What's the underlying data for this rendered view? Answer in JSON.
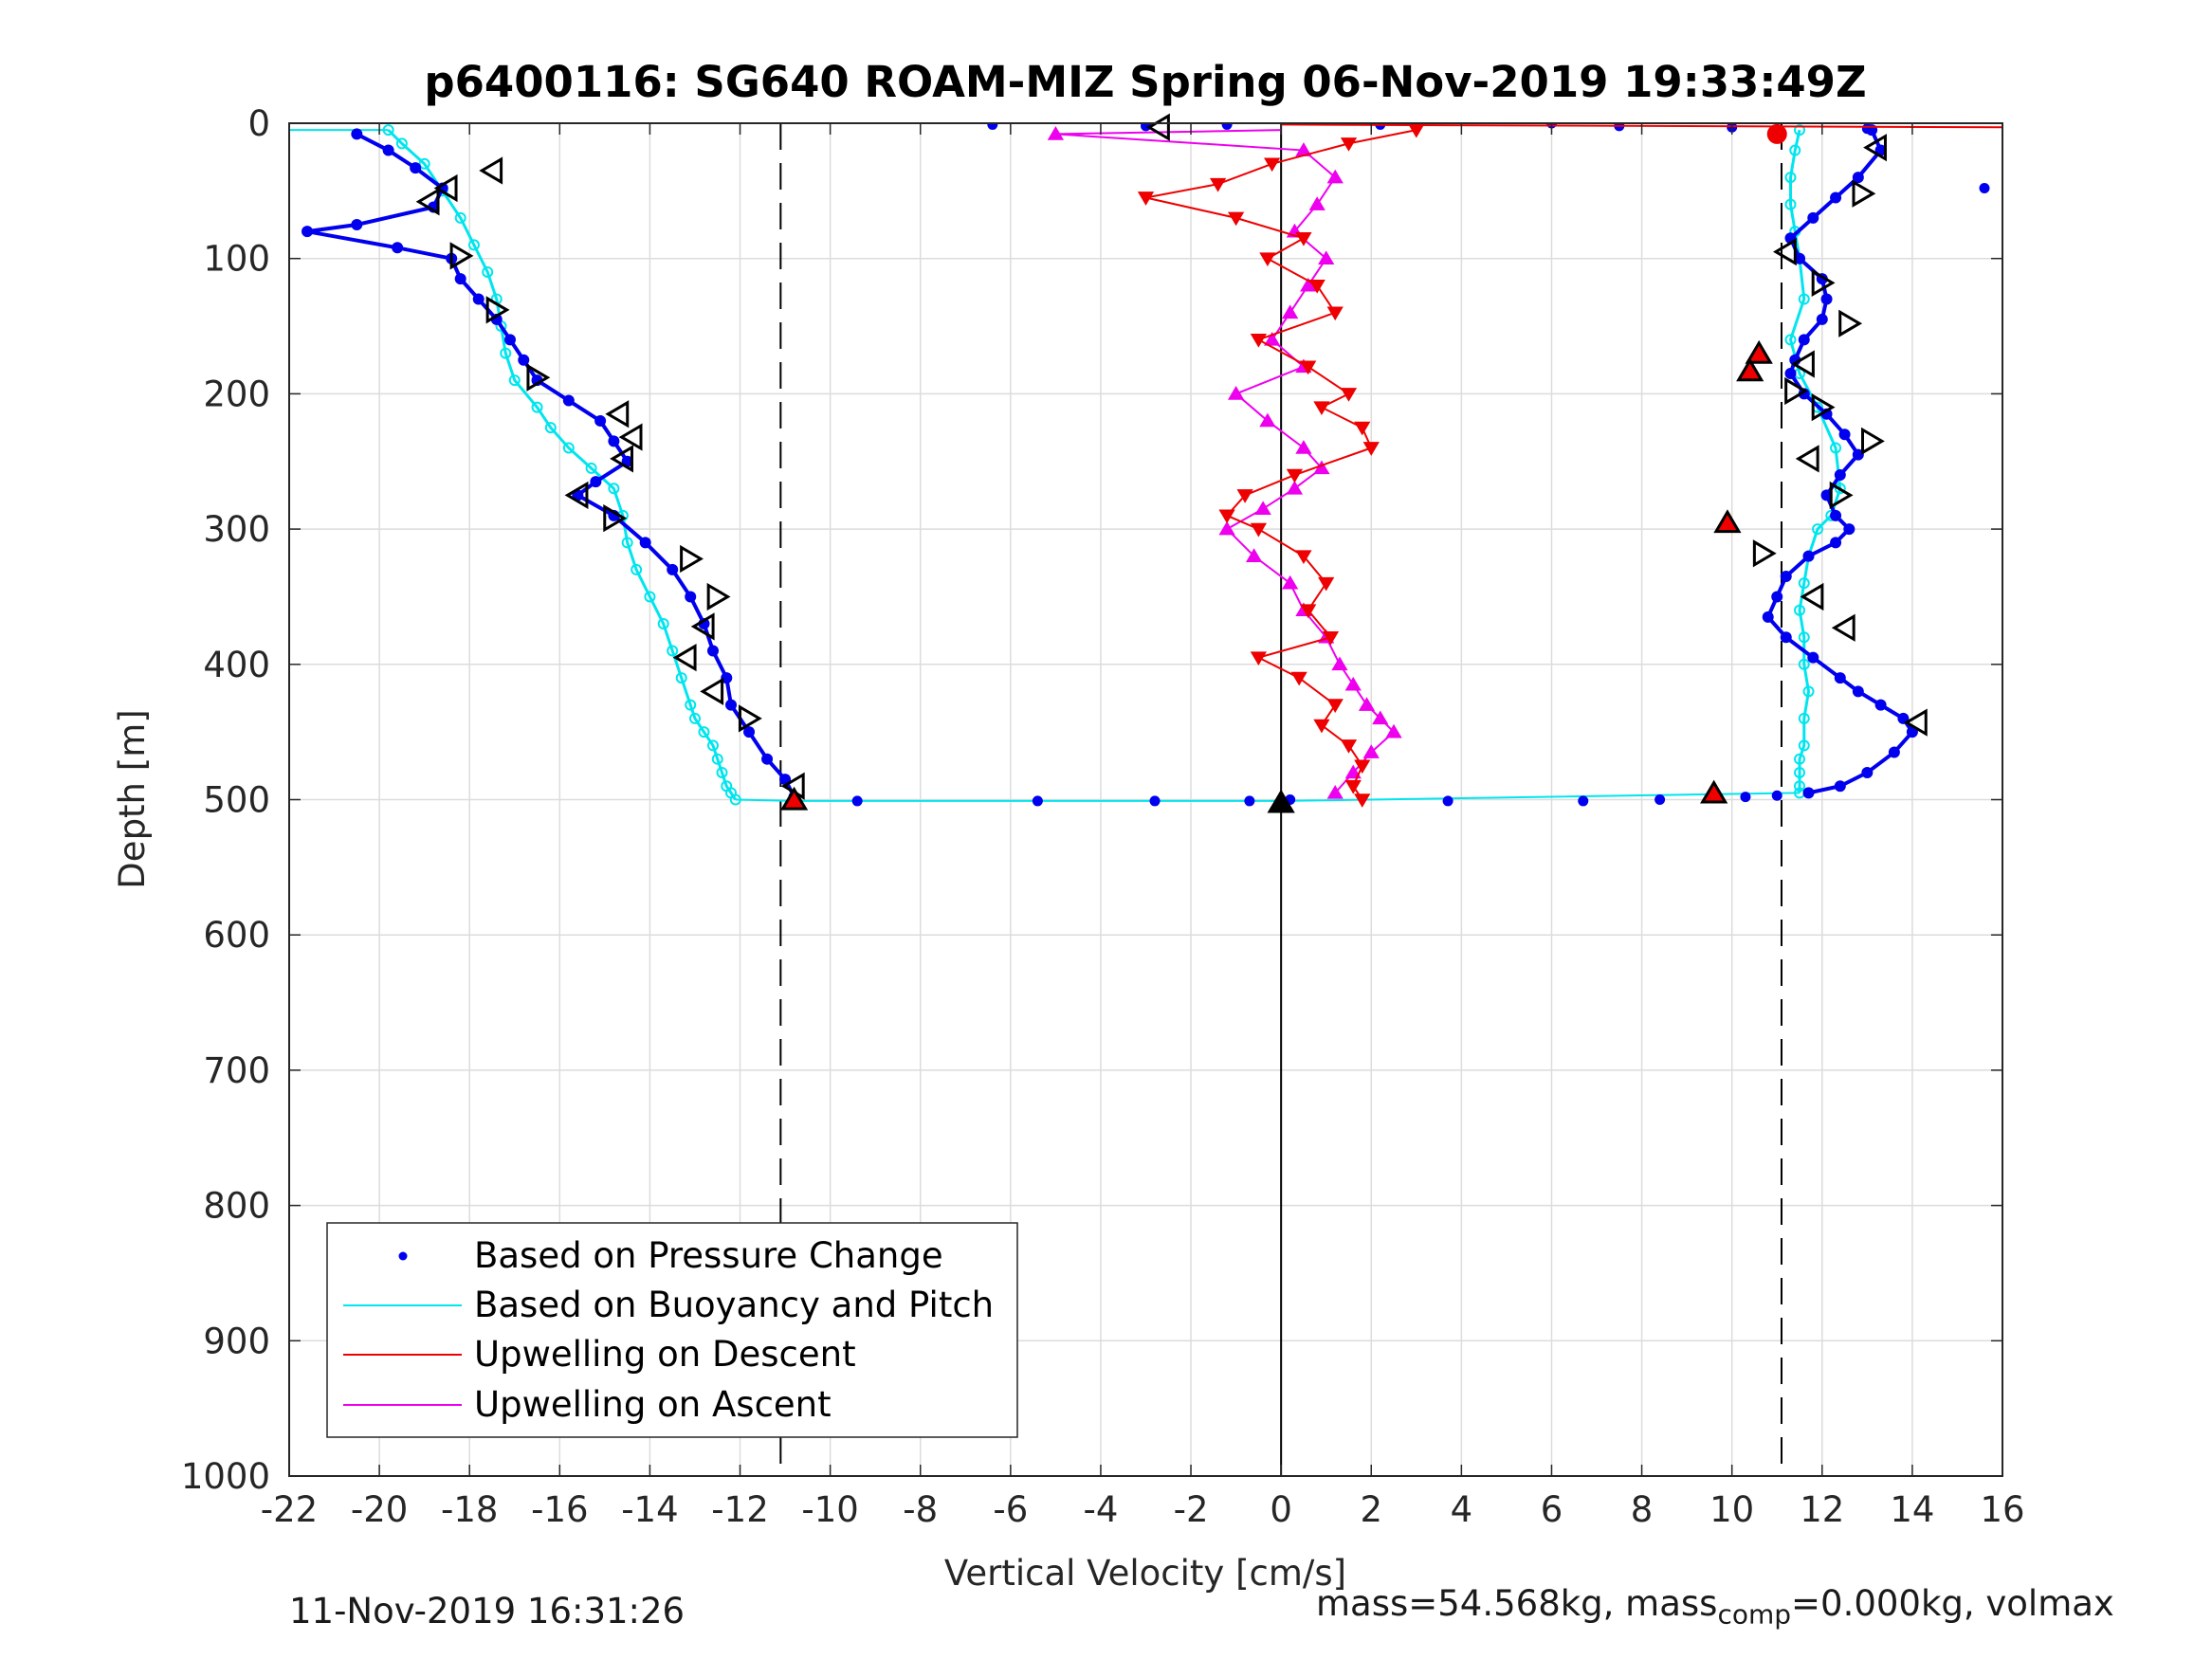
{
  "chart_data": {
    "type": "scatter",
    "title": "p6400116: SG640 ROAM-MIZ Spring 06-Nov-2019 19:33:49Z",
    "xlabel": "Vertical Velocity [cm/s]",
    "ylabel": "Depth [m]",
    "xlim": [
      -22,
      16
    ],
    "ylim": [
      0,
      1000
    ],
    "y_reversed": true,
    "grid": true,
    "x_ticks": [
      "-22",
      "-20",
      "-18",
      "-16",
      "-14",
      "-12",
      "-10",
      "-8",
      "-6",
      "-4",
      "-2",
      "0",
      "2",
      "4",
      "6",
      "8",
      "10",
      "12",
      "14",
      "16"
    ],
    "y_ticks": [
      "0",
      "100",
      "200",
      "300",
      "400",
      "500",
      "600",
      "700",
      "800",
      "900",
      "1000"
    ],
    "legend_position": "bottom-left",
    "reference_lines": [
      {
        "x": -11.1,
        "style": "dashed"
      },
      {
        "x": 11.1,
        "style": "dashed"
      },
      {
        "x": 0,
        "style": "solid"
      }
    ],
    "series": [
      {
        "name": "Based on Pressure Change",
        "color": "#0000ee",
        "marker": "dot",
        "descent": {
          "x": [
            -20.5,
            -19.8,
            -19.2,
            -18.6,
            -18.8,
            -20.5,
            -21.6,
            -19.6,
            -18.4,
            -18.2,
            -17.8,
            -17.4,
            -17.1,
            -16.8,
            -16.5,
            -15.8,
            -15.1,
            -14.8,
            -14.5,
            -15.2,
            -15.6,
            -14.8,
            -14.1,
            -13.5,
            -13.1,
            -12.8,
            -12.6,
            -12.3,
            -12.2,
            -11.8,
            -11.4,
            -11.0,
            -10.8
          ],
          "y": [
            8,
            20,
            33,
            48,
            62,
            75,
            80,
            92,
            100,
            115,
            130,
            145,
            160,
            175,
            190,
            205,
            220,
            235,
            250,
            265,
            275,
            290,
            310,
            330,
            350,
            370,
            390,
            410,
            430,
            450,
            470,
            485,
            498
          ]
        },
        "ascent": {
          "x": [
            13.1,
            13.3,
            12.8,
            12.3,
            11.8,
            11.3,
            11.5,
            12.0,
            12.1,
            12.0,
            11.6,
            11.4,
            11.3,
            11.6,
            12.1,
            12.5,
            12.8,
            12.4,
            12.1,
            12.3,
            12.6,
            12.3,
            11.7,
            11.2,
            11.0,
            10.8,
            11.2,
            11.8,
            12.4,
            12.8,
            13.3,
            13.8,
            14.0,
            13.6,
            13.0,
            12.4,
            11.7
          ],
          "y": [
            5,
            20,
            40,
            55,
            70,
            85,
            100,
            115,
            130,
            145,
            160,
            175,
            185,
            200,
            215,
            230,
            245,
            260,
            275,
            290,
            300,
            310,
            320,
            335,
            350,
            365,
            380,
            395,
            410,
            420,
            430,
            440,
            450,
            465,
            480,
            490,
            495
          ]
        }
      },
      {
        "name": "Based on Buoyancy and Pitch",
        "color": "#00e5ee",
        "marker": "line",
        "descent": {
          "x": [
            -19.8,
            -19.5,
            -19.0,
            -18.6,
            -18.2,
            -17.9,
            -17.6,
            -17.4,
            -17.3,
            -17.2,
            -17.0,
            -16.5,
            -16.2,
            -15.8,
            -15.3,
            -14.8,
            -14.6,
            -14.5,
            -14.3,
            -14.0,
            -13.7,
            -13.5,
            -13.3,
            -13.1,
            -13.0,
            -12.8,
            -12.6,
            -12.5,
            -12.4,
            -12.3,
            -12.2,
            -12.1
          ],
          "y": [
            5,
            15,
            30,
            50,
            70,
            90,
            110,
            130,
            150,
            170,
            190,
            210,
            225,
            240,
            255,
            270,
            290,
            310,
            330,
            350,
            370,
            390,
            410,
            430,
            440,
            450,
            460,
            470,
            480,
            490,
            495,
            500
          ]
        },
        "ascent": {
          "x": [
            11.5,
            11.4,
            11.3,
            11.3,
            11.4,
            11.5,
            11.6,
            11.3,
            11.5,
            11.9,
            12.3,
            12.4,
            12.2,
            11.9,
            11.7,
            11.6,
            11.5,
            11.6,
            11.6,
            11.7,
            11.6,
            11.6,
            11.5,
            11.5,
            11.5,
            11.5
          ],
          "y": [
            5,
            20,
            40,
            60,
            80,
            100,
            130,
            160,
            185,
            210,
            240,
            270,
            290,
            300,
            320,
            340,
            360,
            380,
            400,
            420,
            440,
            460,
            470,
            480,
            490,
            495
          ]
        }
      },
      {
        "name": "Upwelling on Descent",
        "color": "#ee0000",
        "marker": "triangle-down",
        "x": [
          3.0,
          1.5,
          -0.2,
          -1.4,
          -3.0,
          -1.0,
          0.5,
          -0.3,
          0.8,
          1.2,
          -0.5,
          0.6,
          1.5,
          0.9,
          1.8,
          2.0,
          0.3,
          -0.8,
          -1.2,
          -0.5,
          0.5,
          1.0,
          0.6,
          1.1,
          -0.5,
          0.4,
          1.2,
          0.9,
          1.5,
          1.8,
          1.6,
          1.8
        ],
        "y": [
          5,
          15,
          30,
          45,
          55,
          70,
          85,
          100,
          120,
          140,
          160,
          180,
          200,
          210,
          225,
          240,
          260,
          275,
          290,
          300,
          320,
          340,
          360,
          380,
          395,
          410,
          430,
          445,
          460,
          475,
          490,
          500
        ]
      },
      {
        "name": "Upwelling on Ascent",
        "color": "#ee00ee",
        "marker": "triangle-up",
        "x": [
          -5.0,
          0.5,
          1.2,
          0.8,
          0.3,
          1.0,
          0.6,
          0.2,
          -0.2,
          0.5,
          -1.0,
          -0.3,
          0.5,
          0.9,
          0.3,
          -0.4,
          -1.2,
          -0.6,
          0.2,
          0.5,
          1.0,
          1.3,
          1.6,
          1.9,
          2.2,
          2.5,
          2.0,
          1.6,
          1.2
        ],
        "y": [
          8,
          20,
          40,
          60,
          80,
          100,
          120,
          140,
          160,
          180,
          200,
          220,
          240,
          255,
          270,
          285,
          300,
          320,
          340,
          360,
          380,
          400,
          415,
          430,
          440,
          450,
          465,
          480,
          495
        ]
      }
    ],
    "annotations": [
      {
        "type": "triangle-left-open",
        "x": -17.5,
        "y": 35
      },
      {
        "type": "triangle-left-open",
        "x": -18.5,
        "y": 48
      },
      {
        "type": "triangle-left-open",
        "x": -18.9,
        "y": 58
      },
      {
        "type": "triangle-right-open",
        "x": -18.2,
        "y": 98
      },
      {
        "type": "triangle-right-open",
        "x": -17.4,
        "y": 138
      },
      {
        "type": "triangle-right-open",
        "x": -16.5,
        "y": 188
      },
      {
        "type": "triangle-left-open",
        "x": -14.7,
        "y": 215
      },
      {
        "type": "triangle-left-open",
        "x": -14.4,
        "y": 232
      },
      {
        "type": "triangle-left-open",
        "x": -14.6,
        "y": 248
      },
      {
        "type": "triangle-left-open",
        "x": -15.6,
        "y": 275
      },
      {
        "type": "triangle-right-open",
        "x": -14.8,
        "y": 292
      },
      {
        "type": "triangle-right-open",
        "x": -13.1,
        "y": 322
      },
      {
        "type": "triangle-right-open",
        "x": -12.5,
        "y": 350
      },
      {
        "type": "triangle-left-open",
        "x": -12.8,
        "y": 372
      },
      {
        "type": "triangle-left-open",
        "x": -13.2,
        "y": 395
      },
      {
        "type": "triangle-left-open",
        "x": -12.6,
        "y": 420
      },
      {
        "type": "triangle-right-open",
        "x": -11.8,
        "y": 440
      },
      {
        "type": "triangle-left-open",
        "x": -10.8,
        "y": 490
      },
      {
        "type": "triangle-up-red",
        "x": -10.8,
        "y": 500
      },
      {
        "type": "triangle-left-open",
        "x": -2.7,
        "y": 3
      },
      {
        "type": "triangle-up-black",
        "x": 0.0,
        "y": 502
      },
      {
        "type": "circle-red",
        "x": 11.0,
        "y": 8
      },
      {
        "type": "triangle-left-open",
        "x": 13.2,
        "y": 18
      },
      {
        "type": "triangle-right-open",
        "x": 12.9,
        "y": 52
      },
      {
        "type": "triangle-left-open",
        "x": 11.2,
        "y": 95
      },
      {
        "type": "triangle-right-open",
        "x": 12.0,
        "y": 118
      },
      {
        "type": "triangle-right-open",
        "x": 12.6,
        "y": 148
      },
      {
        "type": "triangle-up-red",
        "x": 10.6,
        "y": 170
      },
      {
        "type": "triangle-up-red",
        "x": 10.4,
        "y": 183
      },
      {
        "type": "triangle-left-open",
        "x": 11.6,
        "y": 178
      },
      {
        "type": "triangle-right-open",
        "x": 11.4,
        "y": 198
      },
      {
        "type": "triangle-right-open",
        "x": 12.0,
        "y": 210
      },
      {
        "type": "triangle-right-open",
        "x": 13.1,
        "y": 235
      },
      {
        "type": "triangle-left-open",
        "x": 11.7,
        "y": 248
      },
      {
        "type": "triangle-right-open",
        "x": 12.4,
        "y": 275
      },
      {
        "type": "triangle-up-red",
        "x": 9.9,
        "y": 295
      },
      {
        "type": "triangle-right-open",
        "x": 10.7,
        "y": 318
      },
      {
        "type": "triangle-left-open",
        "x": 11.8,
        "y": 350
      },
      {
        "type": "triangle-left-open",
        "x": 12.5,
        "y": 373
      },
      {
        "type": "triangle-left-open",
        "x": 14.1,
        "y": 443
      },
      {
        "type": "triangle-up-red",
        "x": 9.6,
        "y": 495
      }
    ],
    "bottom_scatter": {
      "x": [
        -9.4,
        -5.4,
        -2.8,
        -0.7,
        0.2,
        3.7,
        6.7,
        8.4,
        10.3,
        11.0,
        -6.4,
        -3.0,
        -1.2,
        2.2,
        6.0,
        7.5,
        10.0,
        13.0,
        15.6
      ],
      "y": [
        501,
        501,
        501,
        501,
        500,
        501,
        501,
        500,
        498,
        497,
        1,
        2,
        1,
        1,
        0,
        2,
        3,
        4,
        48
      ]
    }
  },
  "footer": {
    "left_text": "11-Nov-2019 16:31:26",
    "right_prefix": "mass=54.568kg, mass",
    "right_sub": "comp",
    "right_suffix": "=0.000kg, volmax"
  }
}
